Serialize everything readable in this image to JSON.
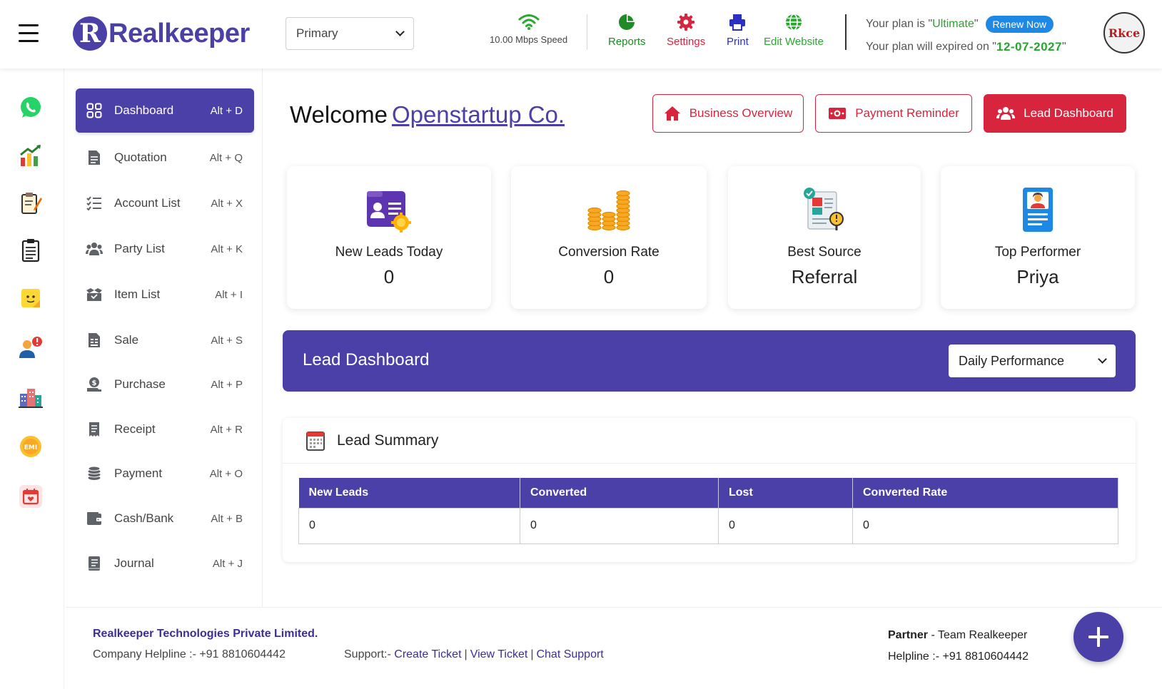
{
  "header": {
    "menu_icon": "hamburger-icon",
    "logo": {
      "letter": "R",
      "text_bold": "Realkeeper",
      "text_light": ""
    },
    "account_select": {
      "value": "Primary"
    },
    "speed": {
      "label": "10.00 Mbps Speed",
      "icon": "wifi-icon"
    },
    "tools": [
      {
        "label": "Reports",
        "icon": "pie-chart-icon",
        "color": "#1f8b24"
      },
      {
        "label": "Settings",
        "icon": "gear-icon",
        "color": "#d8253e"
      },
      {
        "label": "Print",
        "icon": "printer-icon",
        "color": "#2b2fc4"
      },
      {
        "label": "Edit Website",
        "icon": "globe-icon",
        "color": "#2aa830"
      }
    ],
    "plan": {
      "prefix": "Your plan is \"",
      "name": "Ultimate",
      "suffix": "\"",
      "renew_label": "Renew Now",
      "expiry_prefix": "Your plan will expired on \" ",
      "expiry_date": "12-07-2027",
      "expiry_suffix": " \""
    },
    "avatar_text": "Rkce"
  },
  "rail": [
    {
      "icon": "whatsapp-icon"
    },
    {
      "icon": "growth-chart-icon"
    },
    {
      "icon": "notepad-pencil-icon"
    },
    {
      "icon": "clipboard-list-icon"
    },
    {
      "icon": "sticky-note-icon"
    },
    {
      "icon": "user-alert-icon"
    },
    {
      "icon": "buildings-icon"
    },
    {
      "icon": "emi-badge-icon",
      "text": "EMI"
    },
    {
      "icon": "calendar-icon"
    }
  ],
  "menu": [
    {
      "label": "Dashboard",
      "shortcut": "Alt + D",
      "icon": "grid-icon",
      "active": true
    },
    {
      "label": "Quotation",
      "shortcut": "Alt + Q",
      "icon": "document-icon"
    },
    {
      "label": "Account List",
      "shortcut": "Alt + X",
      "icon": "checklist-icon"
    },
    {
      "label": "Party List",
      "shortcut": "Alt + K",
      "icon": "users-icon"
    },
    {
      "label": "Item List",
      "shortcut": "Alt + I",
      "icon": "box-icon"
    },
    {
      "label": "Sale",
      "shortcut": "Alt + S",
      "icon": "invoice-icon"
    },
    {
      "label": "Purchase",
      "shortcut": "Alt + P",
      "icon": "money-hand-icon"
    },
    {
      "label": "Receipt",
      "shortcut": "Alt + R",
      "icon": "receipt-icon"
    },
    {
      "label": "Payment",
      "shortcut": "Alt + O",
      "icon": "coins-icon"
    },
    {
      "label": "Cash/Bank",
      "shortcut": "Alt + B",
      "icon": "wallet-icon"
    },
    {
      "label": "Journal",
      "shortcut": "Alt + J",
      "icon": "book-icon"
    }
  ],
  "main": {
    "welcome_prefix": "Welcome",
    "company": "Openstartup Co.",
    "buttons": [
      {
        "label": "Business Overview",
        "icon": "home-icon"
      },
      {
        "label": "Payment Reminder",
        "icon": "cash-icon"
      },
      {
        "label": "Lead Dashboard",
        "icon": "users-icon"
      }
    ],
    "cards": [
      {
        "title": "New Leads Today",
        "value": "0",
        "icon": "lead-card-icon"
      },
      {
        "title": "Conversion Rate",
        "value": "0",
        "icon": "coin-stacks-icon"
      },
      {
        "title": "Best Source",
        "value": "Referral",
        "icon": "source-report-icon"
      },
      {
        "title": "Top Performer",
        "value": "Priya",
        "icon": "id-badge-icon"
      }
    ],
    "lead_dashboard": {
      "title": "Lead Dashboard",
      "filter_value": "Daily Performance"
    },
    "summary": {
      "title": "Lead Summary",
      "icon": "calendar-sheet-icon",
      "columns": [
        "New Leads",
        "Converted",
        "Lost",
        "Converted Rate"
      ],
      "rows": [
        [
          "0",
          "0",
          "0",
          "0"
        ]
      ]
    }
  },
  "footer": {
    "company": "Realkeeper Technologies Private Limited.",
    "helpline_label": "Company Helpline :-  +91 8810604442",
    "support_label": "Support:-",
    "support_links": [
      "Create Ticket",
      "View Ticket",
      "Chat Support"
    ],
    "partner_label": "Partner",
    "partner_value": " - Team Realkeeper",
    "partner_helpline": "Helpline :- +91 8810604442",
    "fab_icon": "plus-icon"
  },
  "colors": {
    "brand": "#4b3fa8",
    "accent_red": "#d8253e",
    "success": "#27a52e",
    "link": "#3a2f96"
  }
}
